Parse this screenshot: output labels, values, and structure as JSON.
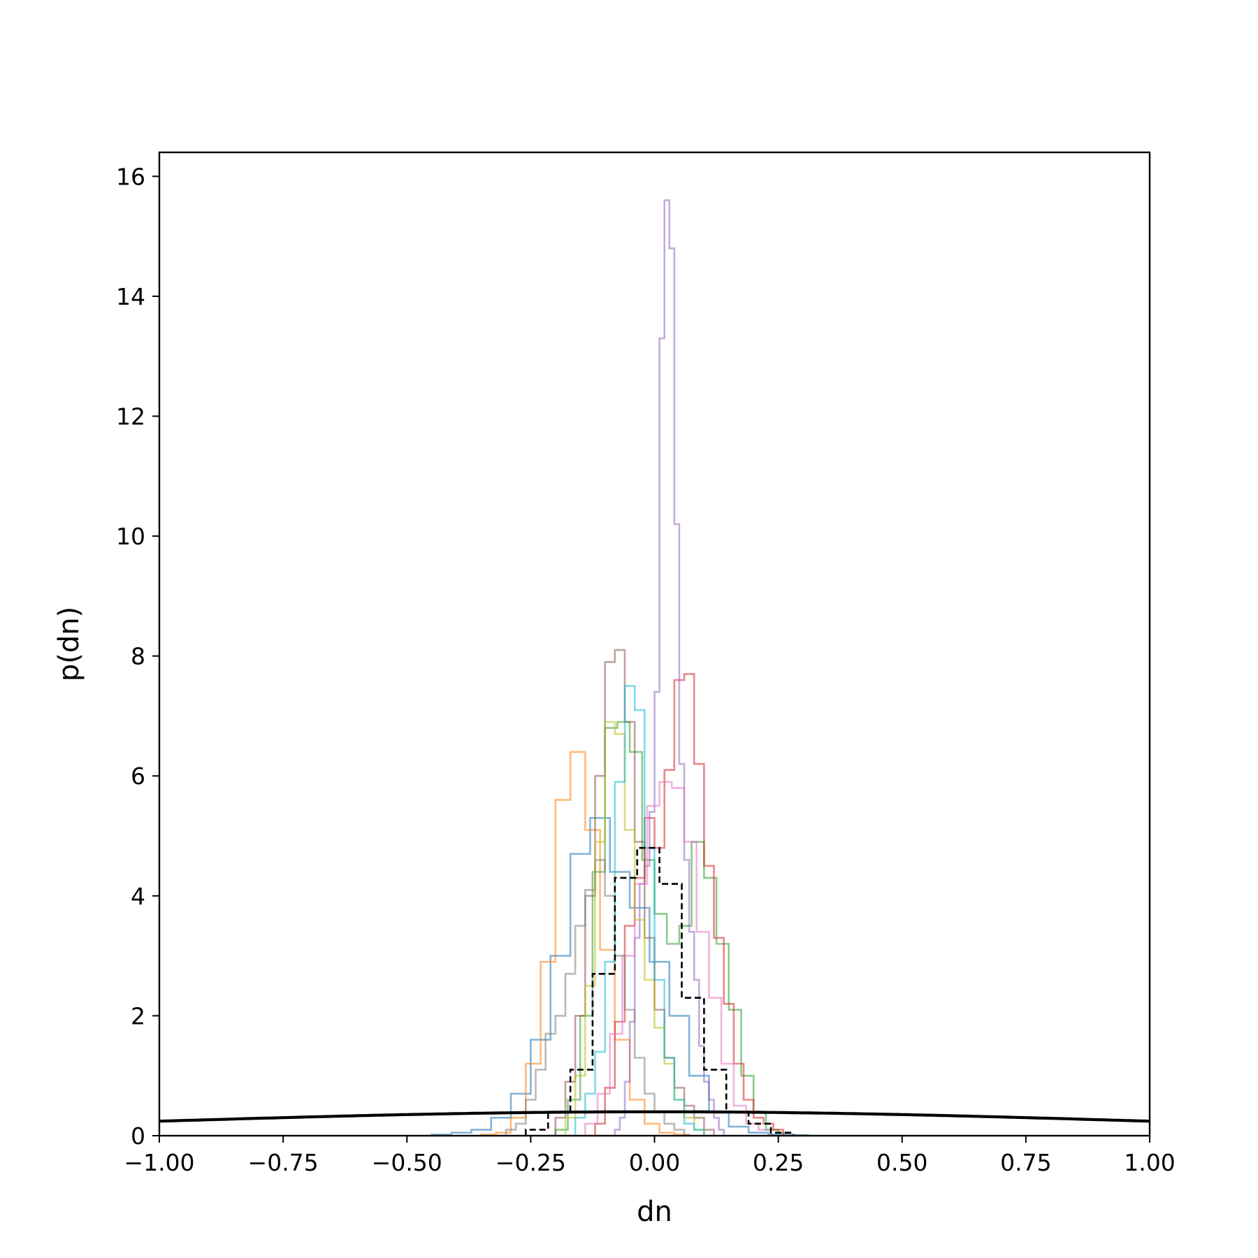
{
  "chart_data": {
    "type": "step-histogram",
    "xlabel": "dn",
    "ylabel": "p(dn)",
    "xlim": [
      -1.0,
      1.0
    ],
    "ylim": [
      0,
      16.4
    ],
    "grid": false,
    "legend": "none",
    "x_ticks": [
      "−1.00",
      "−0.75",
      "−0.50",
      "−0.25",
      "0.00",
      "0.25",
      "0.50",
      "0.75",
      "1.00"
    ],
    "x_tick_values": [
      -1.0,
      -0.75,
      -0.5,
      -0.25,
      0.0,
      0.25,
      0.5,
      0.75,
      1.0
    ],
    "y_ticks": [
      "0",
      "2",
      "4",
      "6",
      "8",
      "10",
      "12",
      "14",
      "16"
    ],
    "y_tick_values": [
      0,
      2,
      4,
      6,
      8,
      10,
      12,
      14,
      16
    ],
    "series": [
      {
        "color": "#1f77b4",
        "opacity": 0.55,
        "bin_start": -0.45,
        "bin_width": 0.04,
        "values": [
          0.02,
          0.05,
          0.1,
          0.3,
          0.7,
          1.6,
          3.0,
          4.7,
          5.3,
          4.4,
          3.8,
          2.9,
          2.0,
          1.0,
          0.4,
          0.15,
          0.05,
          0.02,
          0.01
        ]
      },
      {
        "color": "#ff7f0e",
        "opacity": 0.55,
        "bin_start": -0.35,
        "bin_width": 0.03,
        "values": [
          0.02,
          0.05,
          0.3,
          1.2,
          2.9,
          5.6,
          6.4,
          5.1,
          3.1,
          1.6,
          0.6,
          0.2,
          0.05,
          0.02
        ]
      },
      {
        "color": "#2ca02c",
        "opacity": 0.55,
        "bin_start": -0.2,
        "bin_width": 0.025,
        "values": [
          0.1,
          0.6,
          2.0,
          4.4,
          6.8,
          6.9,
          6.4,
          4.6,
          3.7,
          3.2,
          3.5,
          4.9,
          4.3,
          3.2,
          2.1,
          1.0,
          0.4,
          0.1,
          0.05
        ]
      },
      {
        "color": "#d62728",
        "opacity": 0.55,
        "bin_start": -0.12,
        "bin_width": 0.02,
        "values": [
          0.2,
          0.8,
          1.9,
          3.5,
          4.3,
          5.3,
          4.8,
          6.1,
          7.6,
          7.7,
          6.2,
          4.5,
          3.3,
          2.2,
          1.2,
          0.6,
          0.3,
          0.2,
          0.1
        ]
      },
      {
        "color": "#9467bd",
        "opacity": 0.55,
        "bin_start": -0.08,
        "bin_width": 0.01,
        "values": [
          0.1,
          0.3,
          0.9,
          1.9,
          3.3,
          4.2,
          4.5,
          5.4,
          7.4,
          13.3,
          15.6,
          14.8,
          10.2,
          6.2,
          4.6,
          3.4,
          2.6,
          1.5,
          0.9,
          0.6,
          0.3,
          0.1
        ]
      },
      {
        "color": "#8c564b",
        "opacity": 0.55,
        "bin_start": -0.2,
        "bin_width": 0.02,
        "values": [
          0.3,
          0.9,
          2.0,
          4.0,
          6.0,
          7.9,
          8.1,
          6.9,
          4.9,
          3.3,
          2.1,
          1.3,
          0.8,
          0.5,
          0.3,
          0.1
        ]
      },
      {
        "color": "#e377c2",
        "opacity": 0.55,
        "bin_start": -0.14,
        "bin_width": 0.025,
        "values": [
          0.2,
          0.7,
          1.7,
          3.0,
          4.2,
          5.5,
          5.9,
          5.8,
          4.9,
          3.4,
          2.3,
          1.2,
          0.5,
          0.2,
          0.1
        ]
      },
      {
        "color": "#7f7f7f",
        "opacity": 0.55,
        "bin_start": -0.3,
        "bin_width": 0.02,
        "values": [
          0.1,
          0.2,
          0.6,
          1.1,
          1.7,
          2.0,
          2.7,
          3.5,
          4.1,
          4.6,
          4.0,
          3.0,
          2.1,
          1.3,
          0.7,
          0.4,
          0.2,
          0.1
        ]
      },
      {
        "color": "#bcbd22",
        "opacity": 0.55,
        "bin_start": -0.18,
        "bin_width": 0.02,
        "values": [
          0.3,
          1.0,
          2.5,
          4.9,
          6.9,
          6.7,
          5.1,
          3.6,
          2.6,
          1.8,
          1.2,
          0.6,
          0.3,
          0.1
        ]
      },
      {
        "color": "#17becf",
        "opacity": 0.55,
        "bin_start": -0.16,
        "bin_width": 0.02,
        "values": [
          0.3,
          0.7,
          1.4,
          2.9,
          5.9,
          7.5,
          7.1,
          4.8,
          2.6,
          1.3,
          0.6,
          0.2,
          0.1
        ]
      },
      {
        "color": "#000000",
        "opacity": 1.0,
        "dashed": true,
        "bin_start": -0.26,
        "bin_width": 0.045,
        "values": [
          0.1,
          0.4,
          1.1,
          2.7,
          4.3,
          4.8,
          4.2,
          2.3,
          1.1,
          0.4,
          0.2,
          0.05
        ]
      }
    ],
    "reference_curve": {
      "type": "normal_pdf",
      "mean": 0.0,
      "sigma": 1.0,
      "color": "#000000"
    }
  }
}
